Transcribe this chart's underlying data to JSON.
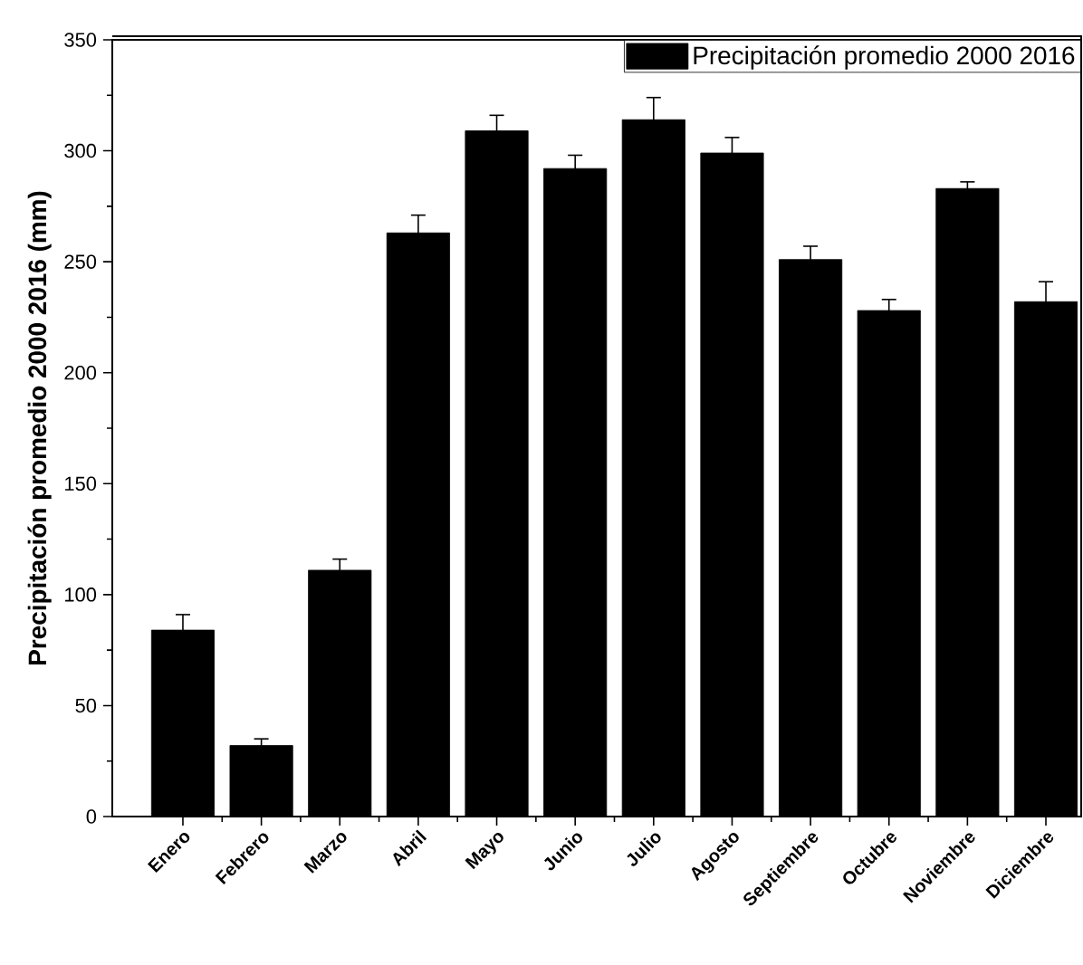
{
  "chart_data": {
    "type": "bar",
    "ylabel": "Precipitación promedio 2000 2016 (mm)",
    "categories": [
      "Enero",
      "Febrero",
      "Marzo",
      "Abril",
      "Mayo",
      "Junio",
      "Julio",
      "Agosto",
      "Septiembre",
      "Octubre",
      "Noviembre",
      "Diciembre"
    ],
    "series": [
      {
        "name": "Precipitación promedio 2000 2016",
        "color": "#000000",
        "values": [
          84,
          32,
          111,
          263,
          309,
          292,
          314,
          299,
          251,
          228,
          283,
          232
        ],
        "errors": [
          7,
          3,
          5,
          8,
          7,
          6,
          10,
          7,
          6,
          5,
          3,
          9
        ]
      }
    ],
    "ylim": [
      0,
      350
    ],
    "yticks": [
      0,
      50,
      100,
      150,
      200,
      250,
      300,
      350
    ],
    "legend": "top right"
  }
}
